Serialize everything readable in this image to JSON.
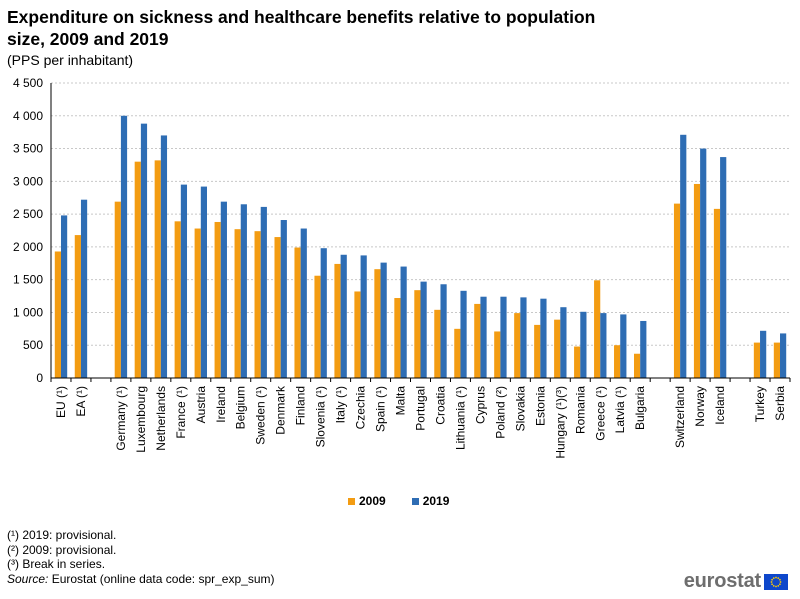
{
  "chart_data": {
    "type": "bar",
    "title": "Expenditure on sickness and healthcare benefits relative to population size, 2009 and 2019",
    "subtitle": "(PPS per inhabitant)",
    "xlabel": "",
    "ylabel": "",
    "ylim": [
      0,
      4500
    ],
    "ytick_values": [
      0,
      500,
      1000,
      1500,
      2000,
      2500,
      3000,
      3500,
      4000,
      4500
    ],
    "ytick_labels": [
      "0",
      "500",
      "1 000",
      "1 500",
      "2 000",
      "2 500",
      "3 000",
      "3 500",
      "4 000",
      "4 500"
    ],
    "grid": true,
    "legend_position": "bottom-center",
    "groups": [
      [
        "EU (¹)",
        "EA (¹)"
      ],
      [
        "Germany (¹)",
        "Luxembourg",
        "Netherlands",
        "France (¹)",
        "Austria",
        "Ireland",
        "Belgium",
        "Sweden (¹)",
        "Denmark",
        "Finland",
        "Slovenia (¹)",
        "Italy (¹)",
        "Czechia",
        "Spain (¹)",
        "Malta",
        "Portugal",
        "Croatia",
        "Lithuania (¹)",
        "Cyprus",
        "Poland (²)",
        "Slovakia",
        "Estonia",
        "Hungary (¹)(³)",
        "Romania",
        "Greece (¹)",
        "Latvia (¹)",
        "Bulgaria"
      ],
      [
        "Switzerland",
        "Norway",
        "Iceland"
      ],
      [
        "Turkey",
        "Serbia"
      ]
    ],
    "categories": [
      "EU (¹)",
      "EA (¹)",
      "Germany (¹)",
      "Luxembourg",
      "Netherlands",
      "France (¹)",
      "Austria",
      "Ireland",
      "Belgium",
      "Sweden (¹)",
      "Denmark",
      "Finland",
      "Slovenia (¹)",
      "Italy (¹)",
      "Czechia",
      "Spain (¹)",
      "Malta",
      "Portugal",
      "Croatia",
      "Lithuania (¹)",
      "Cyprus",
      "Poland (²)",
      "Slovakia",
      "Estonia",
      "Hungary (¹)(³)",
      "Romania",
      "Greece (¹)",
      "Latvia (¹)",
      "Bulgaria",
      "Switzerland",
      "Norway",
      "Iceland",
      "Turkey",
      "Serbia"
    ],
    "series": [
      {
        "name": "2009",
        "color": "#f39c12",
        "values": [
          1930,
          2180,
          2690,
          3300,
          3320,
          2390,
          2280,
          2380,
          2270,
          2240,
          2150,
          1990,
          1560,
          1740,
          1320,
          1660,
          1220,
          1340,
          1040,
          750,
          1130,
          710,
          990,
          810,
          890,
          480,
          1490,
          500,
          370,
          2660,
          2960,
          2580,
          540,
          540
        ]
      },
      {
        "name": "2019",
        "color": "#2e6db4",
        "values": [
          2480,
          2720,
          4000,
          3880,
          3700,
          2950,
          2920,
          2690,
          2650,
          2610,
          2410,
          2280,
          1980,
          1880,
          1870,
          1760,
          1700,
          1470,
          1430,
          1330,
          1240,
          1240,
          1230,
          1210,
          1080,
          1010,
          990,
          970,
          870,
          3710,
          3500,
          3370,
          720,
          680
        ]
      }
    ]
  },
  "footnotes": [
    "(¹) 2019: provisional.",
    "(²) 2009: provisional.",
    "(³) Break in series."
  ],
  "source_label": "Source:",
  "source_text": " Eurostat (online data code: spr_exp_sum)",
  "logo_text": "eurostat",
  "legend": {
    "label_2009": "2009",
    "label_2019": "2019"
  }
}
